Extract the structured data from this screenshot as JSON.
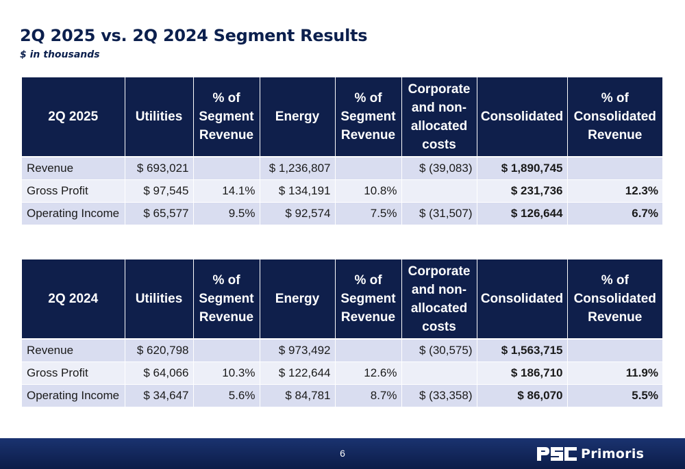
{
  "title": "2Q 2025 vs. 2Q 2024 Segment Results",
  "subtitle": "$ in thousands",
  "tables": [
    {
      "headers": [
        "2Q 2025",
        "Utilities",
        "% of Segment Revenue",
        "Energy",
        "% of Segment Revenue",
        "Corporate and non-allocated costs",
        "Consolidated",
        "% of Consolidated Revenue"
      ],
      "rows": [
        [
          "Revenue",
          "$ 693,021",
          "",
          "$ 1,236,807",
          "",
          "$ (39,083)",
          "$ 1,890,745",
          ""
        ],
        [
          "Gross Profit",
          "$ 97,545",
          "14.1%",
          "$ 134,191",
          "10.8%",
          "",
          "$ 231,736",
          "12.3%"
        ],
        [
          "Operating Income",
          "$ 65,577",
          "9.5%",
          "$ 92,574",
          "7.5%",
          "$ (31,507)",
          "$ 126,644",
          "6.7%"
        ]
      ]
    },
    {
      "headers": [
        "2Q 2024",
        "Utilities",
        "% of Segment Revenue",
        "Energy",
        "% of Segment Revenue",
        "Corporate and non-allocated costs",
        "Consolidated",
        "% of Consolidated Revenue"
      ],
      "rows": [
        [
          "Revenue",
          "$ 620,798",
          "",
          "$ 973,492",
          "",
          "$ (30,575)",
          "$ 1,563,715",
          ""
        ],
        [
          "Gross Profit",
          "$ 64,066",
          "10.3%",
          "$ 122,644",
          "12.6%",
          "",
          "$ 186,710",
          "11.9%"
        ],
        [
          "Operating Income",
          "$ 34,647",
          "5.6%",
          "$ 84,781",
          "8.7%",
          "$ (33,358)",
          "$ 86,070",
          "5.5%"
        ]
      ]
    }
  ],
  "footer": {
    "page_number": "6",
    "logo_text": "Primoris",
    "logo_mark_text": "PSC",
    "background": "#0f1f4b"
  },
  "colors": {
    "header_bg": "#0f1f4b",
    "title": "#0b1f4d",
    "row_odd": "#d9ddf0",
    "row_even": "#edeff8"
  }
}
